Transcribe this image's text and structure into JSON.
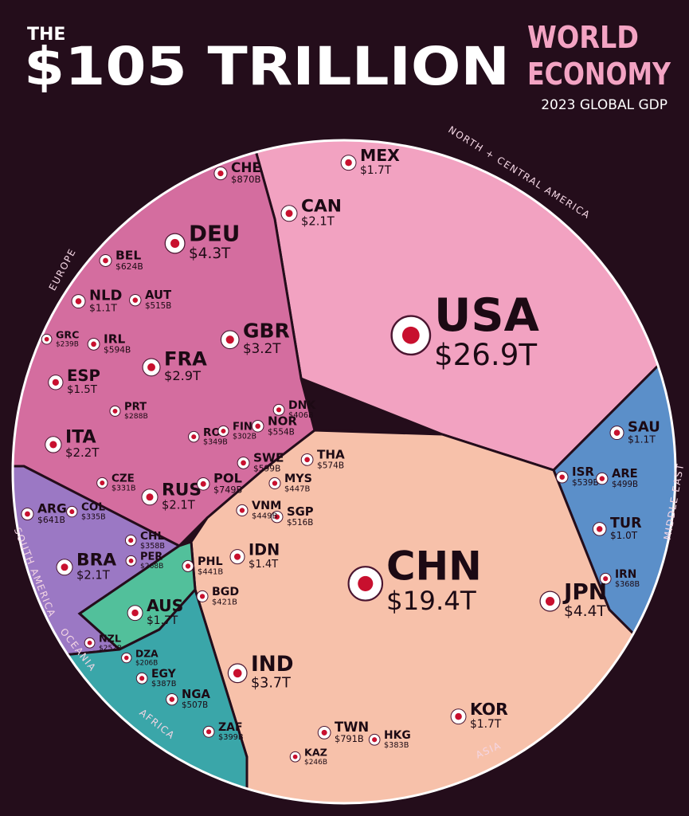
{
  "chart_data": {
    "type": "voronoi-treemap",
    "title_prefix": "THE",
    "title": "$105 TRILLION",
    "title_right": [
      "WORLD",
      "ECONOMY"
    ],
    "subtitle": "2023 GLOBAL GDP",
    "regions": [
      {
        "name": "NORTH + CENTRAL AMERICA",
        "color": "#f2a2c1",
        "countries": [
          {
            "code": "USA",
            "value": 26900,
            "value_label": "$26.9T"
          },
          {
            "code": "CAN",
            "value": 2100,
            "value_label": "$2.1T"
          },
          {
            "code": "MEX",
            "value": 1700,
            "value_label": "$1.7T"
          }
        ]
      },
      {
        "name": "EUROPE",
        "color": "#d46d9f",
        "countries": [
          {
            "code": "DEU",
            "value": 4300,
            "value_label": "$4.3T"
          },
          {
            "code": "GBR",
            "value": 3200,
            "value_label": "$3.2T"
          },
          {
            "code": "FRA",
            "value": 2900,
            "value_label": "$2.9T"
          },
          {
            "code": "ITA",
            "value": 2200,
            "value_label": "$2.2T"
          },
          {
            "code": "RUS",
            "value": 2100,
            "value_label": "$2.1T"
          },
          {
            "code": "ESP",
            "value": 1500,
            "value_label": "$1.5T"
          },
          {
            "code": "NLD",
            "value": 1100,
            "value_label": "$1.1T"
          },
          {
            "code": "CHE",
            "value": 870,
            "value_label": "$870B"
          },
          {
            "code": "POL",
            "value": 749,
            "value_label": "$749B"
          },
          {
            "code": "BEL",
            "value": 624,
            "value_label": "$624B"
          },
          {
            "code": "SWE",
            "value": 599,
            "value_label": "$599B"
          },
          {
            "code": "IRL",
            "value": 594,
            "value_label": "$594B"
          },
          {
            "code": "NOR",
            "value": 554,
            "value_label": "$554B"
          },
          {
            "code": "AUT",
            "value": 515,
            "value_label": "$515B"
          },
          {
            "code": "DNK",
            "value": 406,
            "value_label": "$406B"
          },
          {
            "code": "ROU",
            "value": 349,
            "value_label": "$349B"
          },
          {
            "code": "CZE",
            "value": 331,
            "value_label": "$331B"
          },
          {
            "code": "FIN",
            "value": 302,
            "value_label": "$302B"
          },
          {
            "code": "PRT",
            "value": 288,
            "value_label": "$288B"
          },
          {
            "code": "GRC",
            "value": 239,
            "value_label": "$239B"
          }
        ]
      },
      {
        "name": "MIDDLE EAST",
        "color": "#5b8fc9",
        "countries": [
          {
            "code": "SAU",
            "value": 1100,
            "value_label": "$1.1T"
          },
          {
            "code": "TUR",
            "value": 1000,
            "value_label": "$1.0T"
          },
          {
            "code": "ISR",
            "value": 539,
            "value_label": "$539B"
          },
          {
            "code": "ARE",
            "value": 499,
            "value_label": "$499B"
          },
          {
            "code": "IRN",
            "value": 368,
            "value_label": "$368B"
          }
        ]
      },
      {
        "name": "ASIA",
        "color": "#f7c1aa",
        "countries": [
          {
            "code": "CHN",
            "value": 19400,
            "value_label": "$19.4T"
          },
          {
            "code": "JPN",
            "value": 4400,
            "value_label": "$4.4T"
          },
          {
            "code": "IND",
            "value": 3700,
            "value_label": "$3.7T"
          },
          {
            "code": "KOR",
            "value": 1700,
            "value_label": "$1.7T"
          },
          {
            "code": "IDN",
            "value": 1400,
            "value_label": "$1.4T"
          },
          {
            "code": "TWN",
            "value": 791,
            "value_label": "$791B"
          },
          {
            "code": "THA",
            "value": 574,
            "value_label": "$574B"
          },
          {
            "code": "SGP",
            "value": 516,
            "value_label": "$516B"
          },
          {
            "code": "VNM",
            "value": 449,
            "value_label": "$449B"
          },
          {
            "code": "MYS",
            "value": 447,
            "value_label": "$447B"
          },
          {
            "code": "PHL",
            "value": 441,
            "value_label": "$441B"
          },
          {
            "code": "BGD",
            "value": 421,
            "value_label": "$421B"
          },
          {
            "code": "HKG",
            "value": 383,
            "value_label": "$383B"
          },
          {
            "code": "KAZ",
            "value": 246,
            "value_label": "$246B"
          }
        ]
      },
      {
        "name": "SOUTH AMERICA",
        "color": "#9b78c4",
        "countries": [
          {
            "code": "BRA",
            "value": 2100,
            "value_label": "$2.1T"
          },
          {
            "code": "ARG",
            "value": 641,
            "value_label": "$641B"
          },
          {
            "code": "CHL",
            "value": 358,
            "value_label": "$358B"
          },
          {
            "code": "COL",
            "value": 335,
            "value_label": "$335B"
          },
          {
            "code": "PER",
            "value": 268,
            "value_label": "$268B"
          }
        ]
      },
      {
        "name": "OCEANIA",
        "color": "#52c09b",
        "countries": [
          {
            "code": "AUS",
            "value": 1700,
            "value_label": "$1.7T"
          },
          {
            "code": "NZL",
            "value": 252,
            "value_label": "$252B"
          }
        ]
      },
      {
        "name": "AFRICA",
        "color": "#3aa6a9",
        "countries": [
          {
            "code": "NGA",
            "value": 507,
            "value_label": "$507B"
          },
          {
            "code": "ZAF",
            "value": 399,
            "value_label": "$399B"
          },
          {
            "code": "EGY",
            "value": 387,
            "value_label": "$387B"
          },
          {
            "code": "DZA",
            "value": 206,
            "value_label": "$206B"
          }
        ]
      }
    ]
  }
}
